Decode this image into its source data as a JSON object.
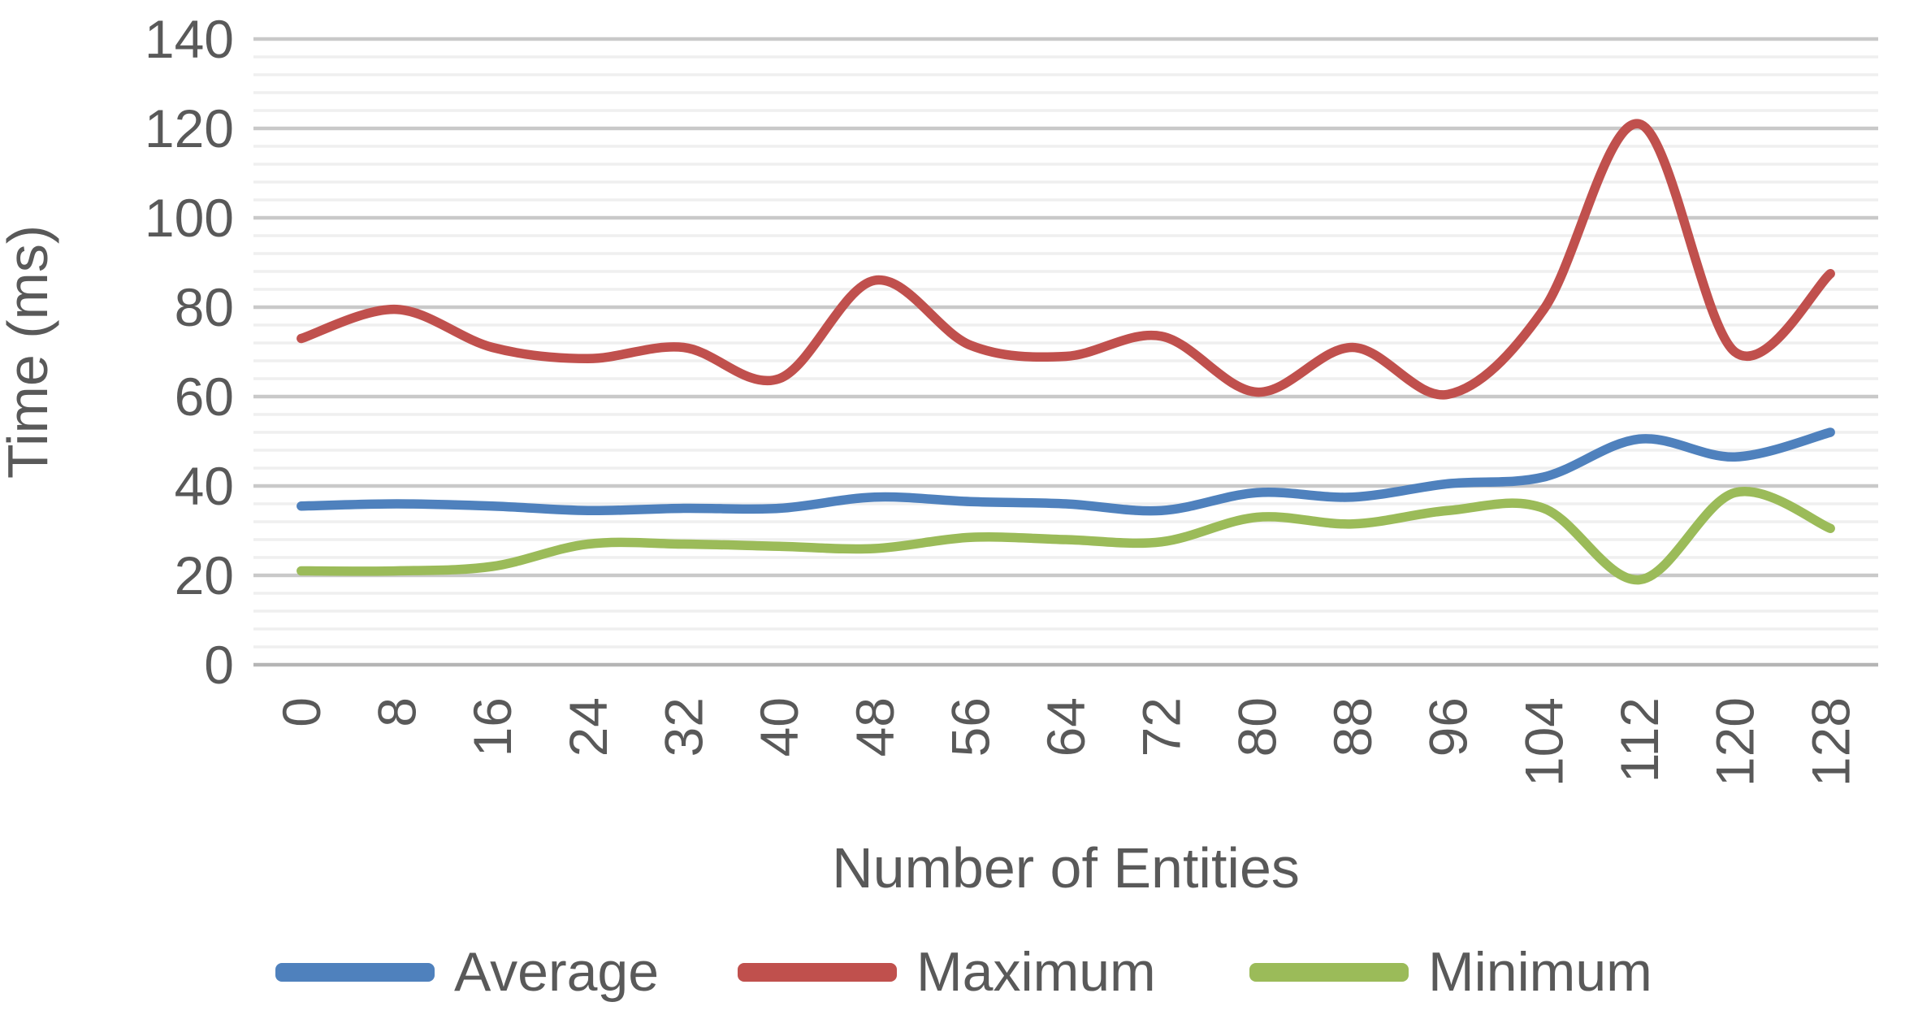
{
  "figure": {
    "background_color": "#FFFFFF",
    "text_color": "#595959"
  },
  "chart_data": {
    "type": "line",
    "title": "",
    "xlabel": "Number of Entities",
    "ylabel": "Time (ms)",
    "x": [
      0,
      8,
      16,
      24,
      32,
      40,
      48,
      56,
      64,
      72,
      80,
      88,
      96,
      104,
      112,
      120,
      128
    ],
    "series": [
      {
        "name": "Average",
        "color": "#4F81BD",
        "values": [
          35.5,
          36,
          35.5,
          34.5,
          35,
          35,
          37.5,
          36.5,
          36,
          34.5,
          38.5,
          37.5,
          40.5,
          42,
          50.5,
          46.5,
          52
        ]
      },
      {
        "name": "Maximum",
        "color": "#C0504D",
        "values": [
          73,
          79.5,
          71,
          68.5,
          71,
          64,
          86,
          71.5,
          69,
          73.5,
          61,
          71,
          60.5,
          79.5,
          121,
          70,
          87.5
        ]
      },
      {
        "name": "Minimum",
        "color": "#9BBB59",
        "values": [
          21,
          21,
          22,
          27,
          27,
          26.5,
          26,
          28.5,
          28,
          27.5,
          33,
          31.5,
          34.5,
          35,
          19,
          38.5,
          30.5
        ]
      }
    ],
    "ylim": [
      0,
      140
    ],
    "yticks": [
      0,
      20,
      40,
      60,
      80,
      100,
      120,
      140
    ],
    "ytick_step": 20,
    "minor_grid_step": 4,
    "x_tick_rotation": -90,
    "line_smoothing": true,
    "legend_position": "bottom",
    "grid": {
      "major": true,
      "minor": true,
      "major_color": "#C9C9C9",
      "minor_color": "#EFEFEF",
      "axis_color": "#B5B5B5"
    }
  }
}
